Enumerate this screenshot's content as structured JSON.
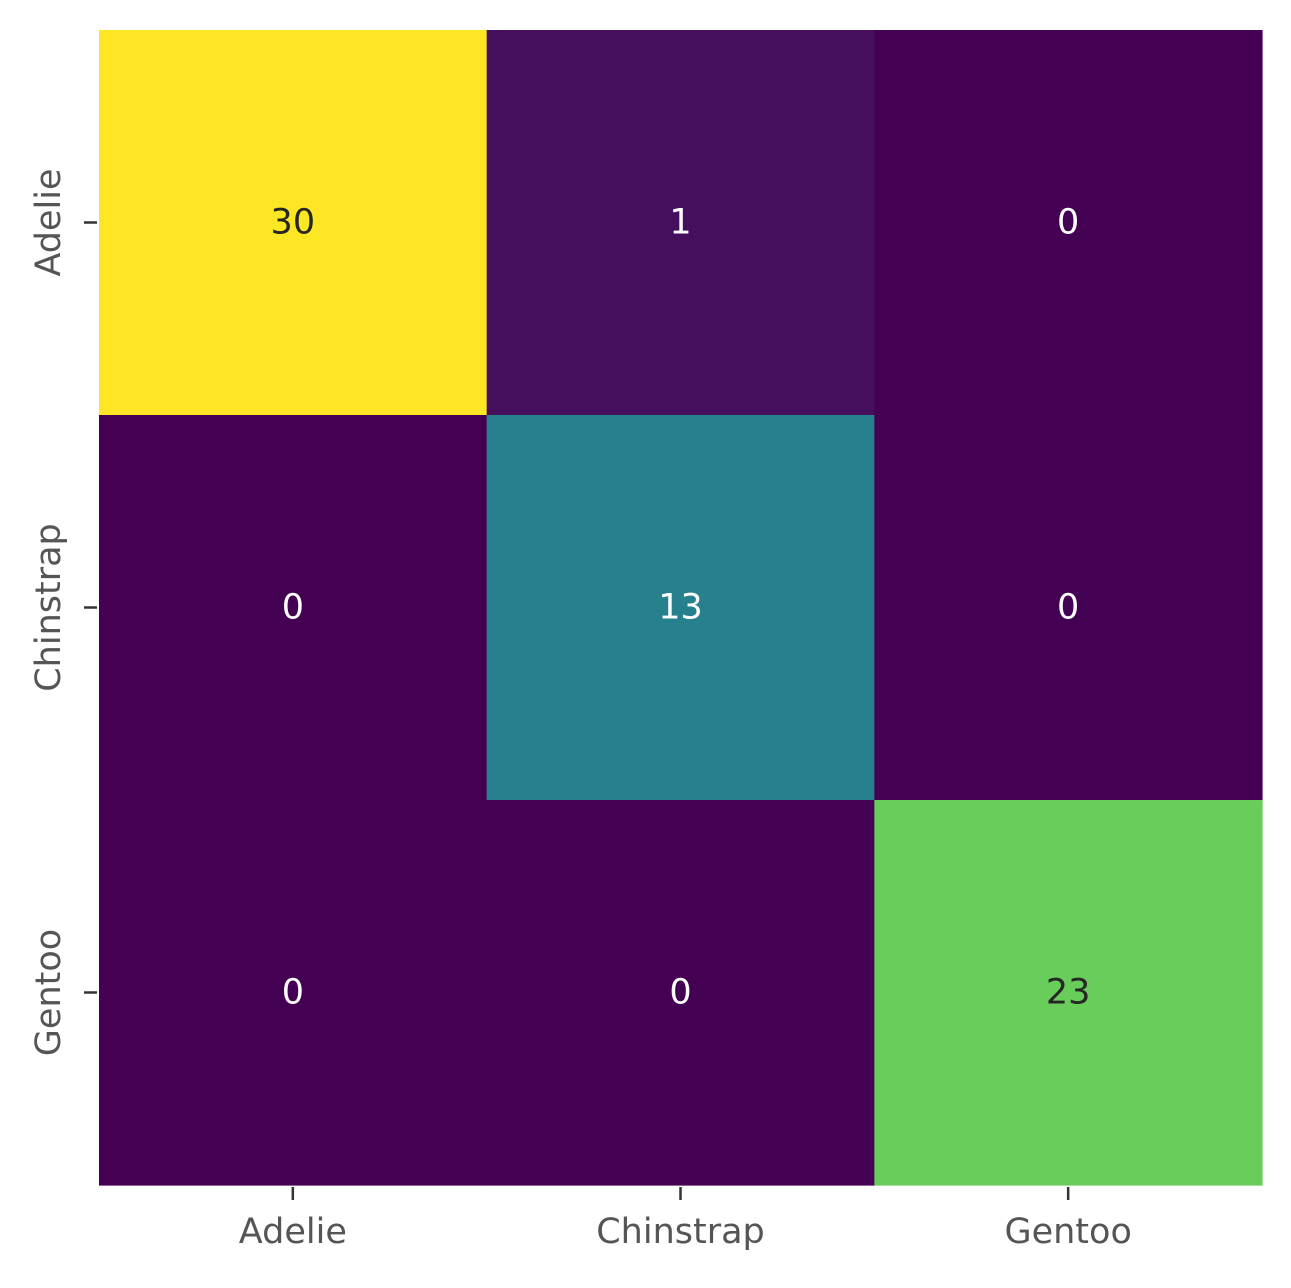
{
  "chart_data": {
    "type": "heatmap",
    "title": "",
    "xlabel": "",
    "ylabel": "",
    "x_categories": [
      "Adelie",
      "Chinstrap",
      "Gentoo"
    ],
    "y_categories": [
      "Adelie",
      "Chinstrap",
      "Gentoo"
    ],
    "values": [
      [
        30,
        1,
        0
      ],
      [
        0,
        13,
        0
      ],
      [
        0,
        0,
        23
      ]
    ],
    "colormap": "viridis",
    "value_range": [
      0,
      30
    ],
    "colorbar": false,
    "grid": false,
    "annotations_shown": true,
    "colors": {
      "dark_text": "#262626",
      "light_text": "#ffffff",
      "tick_label_color": "#555555"
    }
  }
}
